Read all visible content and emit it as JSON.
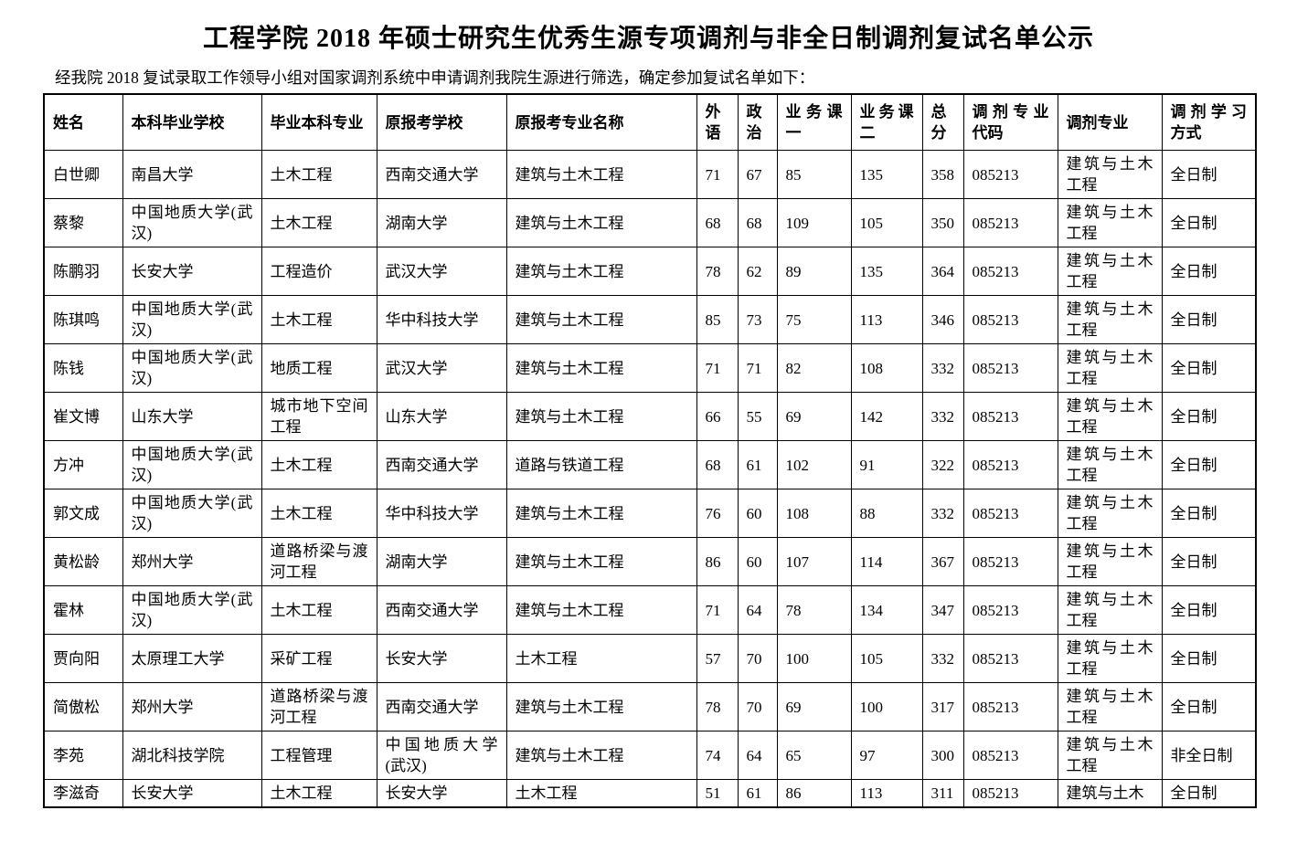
{
  "page": {
    "title": "工程学院 2018 年硕士研究生优秀生源专项调剂与非全日制调剂复试名单公示",
    "intro": "经我院 2018 复试录取工作领导小组对国家调剂系统中申请调剂我院生源进行筛选，确定参加复试名单如下："
  },
  "table": {
    "headers": [
      "姓名",
      "本科毕业学校",
      "毕业本科专业",
      "原报考学校",
      "原报考专业名称",
      "外语",
      "政治",
      "业务课一",
      "业务课二",
      "总分",
      "调剂专业代码",
      "调剂专业",
      "调剂学习方式"
    ],
    "rows": [
      [
        "白世卿",
        "南昌大学",
        "土木工程",
        "西南交通大学",
        "建筑与土木工程",
        "71",
        "67",
        "85",
        "135",
        "358",
        "085213",
        "建筑与土木工程",
        "全日制"
      ],
      [
        "蔡黎",
        "中国地质大学(武汉)",
        "土木工程",
        "湖南大学",
        "建筑与土木工程",
        "68",
        "68",
        "109",
        "105",
        "350",
        "085213",
        "建筑与土木工程",
        "全日制"
      ],
      [
        "陈鹏羽",
        "长安大学",
        "工程造价",
        "武汉大学",
        "建筑与土木工程",
        "78",
        "62",
        "89",
        "135",
        "364",
        "085213",
        "建筑与土木工程",
        "全日制"
      ],
      [
        "陈琪鸣",
        "中国地质大学(武汉)",
        "土木工程",
        "华中科技大学",
        "建筑与土木工程",
        "85",
        "73",
        "75",
        "113",
        "346",
        "085213",
        "建筑与土木工程",
        "全日制"
      ],
      [
        "陈钱",
        "中国地质大学(武汉)",
        "地质工程",
        "武汉大学",
        "建筑与土木工程",
        "71",
        "71",
        "82",
        "108",
        "332",
        "085213",
        "建筑与土木工程",
        "全日制"
      ],
      [
        "崔文博",
        "山东大学",
        "城市地下空间工程",
        "山东大学",
        "建筑与土木工程",
        "66",
        "55",
        "69",
        "142",
        "332",
        "085213",
        "建筑与土木工程",
        "全日制"
      ],
      [
        "方冲",
        "中国地质大学(武汉)",
        "土木工程",
        "西南交通大学",
        "道路与铁道工程",
        "68",
        "61",
        "102",
        "91",
        "322",
        "085213",
        "建筑与土木工程",
        "全日制"
      ],
      [
        "郭文成",
        "中国地质大学(武汉)",
        "土木工程",
        "华中科技大学",
        "建筑与土木工程",
        "76",
        "60",
        "108",
        "88",
        "332",
        "085213",
        "建筑与土木工程",
        "全日制"
      ],
      [
        "黄松龄",
        "郑州大学",
        "道路桥梁与渡河工程",
        "湖南大学",
        "建筑与土木工程",
        "86",
        "60",
        "107",
        "114",
        "367",
        "085213",
        "建筑与土木工程",
        "全日制"
      ],
      [
        "霍林",
        "中国地质大学(武汉)",
        "土木工程",
        "西南交通大学",
        "建筑与土木工程",
        "71",
        "64",
        "78",
        "134",
        "347",
        "085213",
        "建筑与土木工程",
        "全日制"
      ],
      [
        "贾向阳",
        "太原理工大学",
        "采矿工程",
        "长安大学",
        "土木工程",
        "57",
        "70",
        "100",
        "105",
        "332",
        "085213",
        "建筑与土木工程",
        "全日制"
      ],
      [
        "简傲松",
        "郑州大学",
        "道路桥梁与渡河工程",
        "西南交通大学",
        "建筑与土木工程",
        "78",
        "70",
        "69",
        "100",
        "317",
        "085213",
        "建筑与土木工程",
        "全日制"
      ],
      [
        "李苑",
        "湖北科技学院",
        "工程管理",
        "中国地质大学(武汉)",
        "建筑与土木工程",
        "74",
        "64",
        "65",
        "97",
        "300",
        "085213",
        "建筑与土木工程",
        "非全日制"
      ],
      [
        "李滋奇",
        "长安大学",
        "土木工程",
        "长安大学",
        "土木工程",
        "51",
        "61",
        "86",
        "113",
        "311",
        "085213",
        "建筑与土木",
        "全日制"
      ]
    ]
  }
}
